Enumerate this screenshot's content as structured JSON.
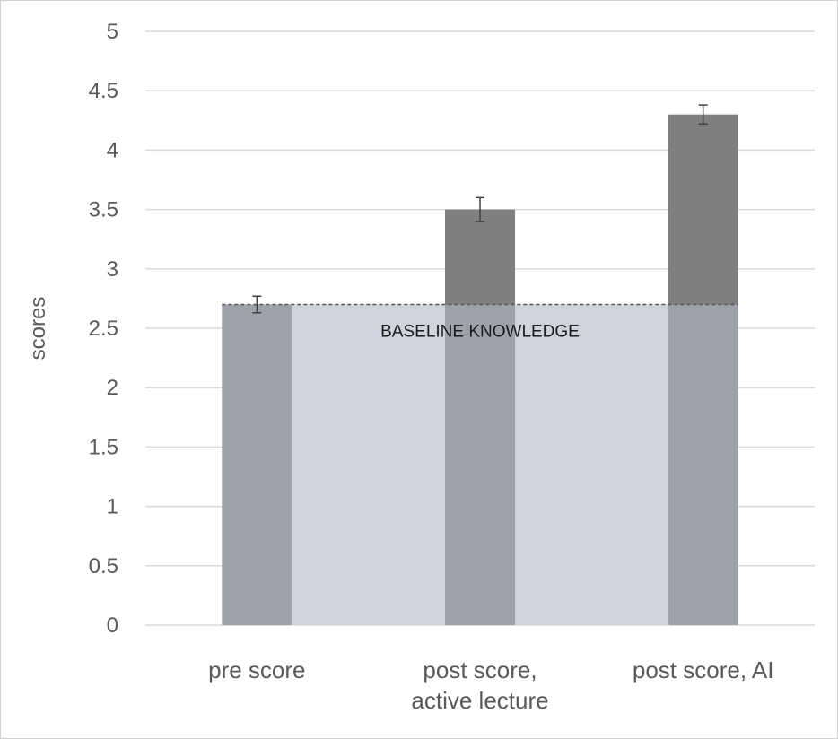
{
  "chart_data": {
    "type": "bar",
    "categories": [
      [
        "pre score"
      ],
      [
        "post score,",
        "active lecture"
      ],
      [
        "post score, AI"
      ]
    ],
    "values": [
      2.7,
      3.5,
      4.3
    ],
    "errors": [
      0.07,
      0.1,
      0.08
    ],
    "baseline": 2.7,
    "baseline_label": "BASELINE KNOWLEDGE",
    "ylabel": "scores",
    "ylim": [
      0,
      5
    ],
    "yticks": [
      "0",
      "0.5",
      "1",
      "1.5",
      "2",
      "2.5",
      "3",
      "3.5",
      "4",
      "4.5",
      "5"
    ],
    "grid": true,
    "colors": {
      "bar": "#7f7f7f",
      "bar_below_baseline": "#9da2ad",
      "baseline_band": "#cfd3de",
      "grid": "#d9d9d9",
      "error_bar": "#404040"
    }
  }
}
